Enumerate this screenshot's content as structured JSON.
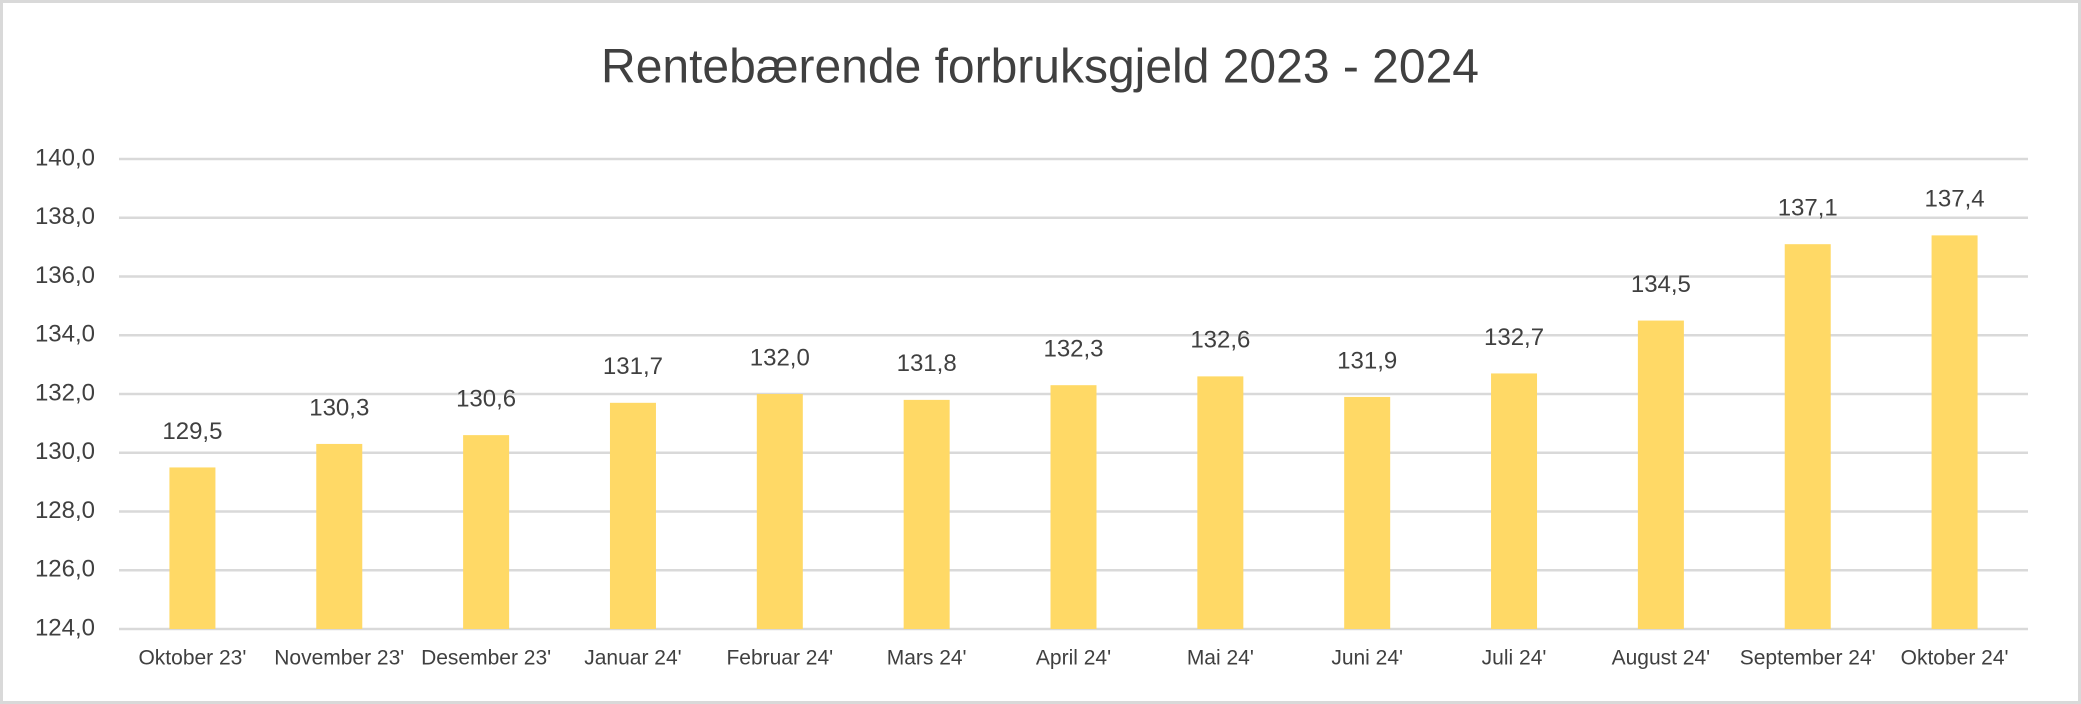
{
  "chart_data": {
    "type": "bar",
    "title": "Rentebærende forbruksgjeld 2023 - 2024",
    "categories": [
      "Oktober 23'",
      "November 23'",
      "Desember 23'",
      "Januar 24'",
      "Februar 24'",
      "Mars 24'",
      "April 24'",
      "Mai 24'",
      "Juni 24'",
      "Juli 24'",
      "August 24'",
      "September 24'",
      "Oktober 24'"
    ],
    "values": [
      129.5,
      130.3,
      130.6,
      131.7,
      132.0,
      131.8,
      132.3,
      132.6,
      131.9,
      132.7,
      134.5,
      137.1,
      137.4
    ],
    "value_labels": [
      "129,5",
      "130,3",
      "130,6",
      "131,7",
      "132,0",
      "131,8",
      "132,3",
      "132,6",
      "131,9",
      "132,7",
      "134,5",
      "137,1",
      "137,4"
    ],
    "color": "#ffd966",
    "ylim": [
      124,
      140
    ],
    "yticks": [
      {
        "value": 124,
        "label": "124,0"
      },
      {
        "value": 126,
        "label": "126,0"
      },
      {
        "value": 128,
        "label": "128,0"
      },
      {
        "value": 130,
        "label": "130,0"
      },
      {
        "value": 132,
        "label": "132,0"
      },
      {
        "value": 134,
        "label": "134,0"
      },
      {
        "value": 136,
        "label": "136,0"
      },
      {
        "value": 138,
        "label": "138,0"
      },
      {
        "value": 140,
        "label": "140,0"
      }
    ],
    "grid": true
  }
}
